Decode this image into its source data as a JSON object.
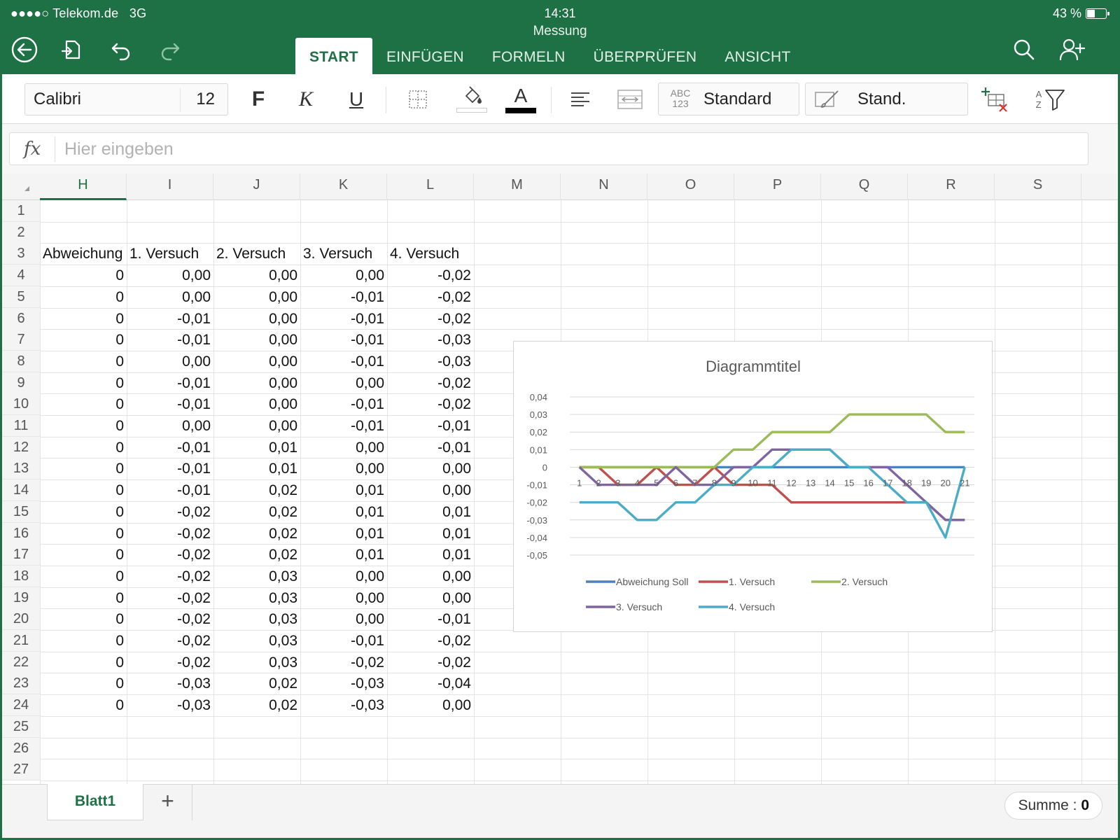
{
  "status": {
    "carrier": "●●●●○ Telekom.de",
    "network": "3G",
    "time": "14:31",
    "battery": "43 %",
    "battery_level": 0.43
  },
  "document": {
    "title": "Messung"
  },
  "tabs": [
    {
      "label": "START",
      "active": true
    },
    {
      "label": "EINFÜGEN",
      "active": false
    },
    {
      "label": "FORMELN",
      "active": false
    },
    {
      "label": "ÜBERPRÜFEN",
      "active": false
    },
    {
      "label": "ANSICHT",
      "active": false
    }
  ],
  "ribbon": {
    "font_name": "Calibri",
    "font_size": "12",
    "bold": "F",
    "italic": "K",
    "underline": "U",
    "font_color": "A",
    "number_format_icon": "ABC 123",
    "number_format": "Standard",
    "cell_style": "Stand.",
    "sort_a": "A",
    "sort_z": "Z"
  },
  "formula_bar": {
    "fx_label": "fx",
    "placeholder": "Hier eingeben",
    "value": ""
  },
  "columns": [
    "H",
    "I",
    "J",
    "K",
    "L",
    "M",
    "N",
    "O",
    "P",
    "Q",
    "R",
    "S"
  ],
  "selected_column": "H",
  "rows": [
    "1",
    "2",
    "3",
    "4",
    "5",
    "6",
    "7",
    "8",
    "9",
    "10",
    "11",
    "12",
    "13",
    "14",
    "15",
    "16",
    "17",
    "18",
    "19",
    "20",
    "21",
    "22",
    "23",
    "24",
    "25",
    "26",
    "27"
  ],
  "table": {
    "headers": [
      "Abweichung",
      "1. Versuch",
      "2. Versuch",
      "3. Versuch",
      "4. Versuch"
    ],
    "data": [
      [
        "0",
        "0,00",
        "0,00",
        "0,00",
        "-0,02"
      ],
      [
        "0",
        "0,00",
        "0,00",
        "-0,01",
        "-0,02"
      ],
      [
        "0",
        "-0,01",
        "0,00",
        "-0,01",
        "-0,02"
      ],
      [
        "0",
        "-0,01",
        "0,00",
        "-0,01",
        "-0,03"
      ],
      [
        "0",
        "0,00",
        "0,00",
        "-0,01",
        "-0,03"
      ],
      [
        "0",
        "-0,01",
        "0,00",
        "0,00",
        "-0,02"
      ],
      [
        "0",
        "-0,01",
        "0,00",
        "-0,01",
        "-0,02"
      ],
      [
        "0",
        "0,00",
        "0,00",
        "-0,01",
        "-0,01"
      ],
      [
        "0",
        "-0,01",
        "0,01",
        "0,00",
        "-0,01"
      ],
      [
        "0",
        "-0,01",
        "0,01",
        "0,00",
        "0,00"
      ],
      [
        "0",
        "-0,01",
        "0,02",
        "0,01",
        "0,00"
      ],
      [
        "0",
        "-0,02",
        "0,02",
        "0,01",
        "0,01"
      ],
      [
        "0",
        "-0,02",
        "0,02",
        "0,01",
        "0,01"
      ],
      [
        "0",
        "-0,02",
        "0,02",
        "0,01",
        "0,01"
      ],
      [
        "0",
        "-0,02",
        "0,03",
        "0,00",
        "0,00"
      ],
      [
        "0",
        "-0,02",
        "0,03",
        "0,00",
        "0,00"
      ],
      [
        "0",
        "-0,02",
        "0,03",
        "0,00",
        "-0,01"
      ],
      [
        "0",
        "-0,02",
        "0,03",
        "-0,01",
        "-0,02"
      ],
      [
        "0",
        "-0,02",
        "0,03",
        "-0,02",
        "-0,02"
      ],
      [
        "0",
        "-0,03",
        "0,02",
        "-0,03",
        "-0,04"
      ],
      [
        "0",
        "-0,03",
        "0,02",
        "-0,03",
        "0,00"
      ]
    ]
  },
  "chart_data": {
    "type": "line",
    "title": "Diagrammtitel",
    "x": [
      "1",
      "2",
      "3",
      "4",
      "5",
      "6",
      "7",
      "8",
      "9",
      "10",
      "11",
      "12",
      "13",
      "14",
      "15",
      "16",
      "17",
      "18",
      "19",
      "20",
      "21"
    ],
    "ylim": [
      -0.05,
      0.04
    ],
    "yticks": [
      "0,04",
      "0,03",
      "0,02",
      "0,01",
      "0",
      "-0,01",
      "-0,02",
      "-0,03",
      "-0,04",
      "-0,05"
    ],
    "ytick_values": [
      0.04,
      0.03,
      0.02,
      0.01,
      0,
      -0.01,
      -0.02,
      -0.03,
      -0.04,
      -0.05
    ],
    "grid": true,
    "legend": "bottom",
    "series": [
      {
        "name": "Abweichung Soll",
        "color": "#4f81bd",
        "values": [
          0,
          0,
          0,
          0,
          0,
          0,
          0,
          0,
          0,
          0,
          0,
          0,
          0,
          0,
          0,
          0,
          0,
          0,
          0,
          0,
          0
        ]
      },
      {
        "name": "1. Versuch",
        "color": "#c0504d",
        "values": [
          0,
          0,
          -0.01,
          -0.01,
          0,
          -0.01,
          -0.01,
          0,
          -0.01,
          -0.01,
          -0.01,
          -0.02,
          -0.02,
          -0.02,
          -0.02,
          -0.02,
          -0.02,
          -0.02,
          -0.02,
          -0.03,
          -0.03
        ]
      },
      {
        "name": "2. Versuch",
        "color": "#9bbb59",
        "values": [
          0,
          0,
          0,
          0,
          0,
          0,
          0,
          0,
          0.01,
          0.01,
          0.02,
          0.02,
          0.02,
          0.02,
          0.03,
          0.03,
          0.03,
          0.03,
          0.03,
          0.02,
          0.02
        ]
      },
      {
        "name": "3. Versuch",
        "color": "#8064a2",
        "values": [
          0,
          -0.01,
          -0.01,
          -0.01,
          -0.01,
          0,
          -0.01,
          -0.01,
          0,
          0,
          0.01,
          0.01,
          0.01,
          0.01,
          0,
          0,
          0,
          -0.01,
          -0.02,
          -0.03,
          -0.03
        ]
      },
      {
        "name": "4. Versuch",
        "color": "#4bacc6",
        "values": [
          -0.02,
          -0.02,
          -0.02,
          -0.03,
          -0.03,
          -0.02,
          -0.02,
          -0.01,
          -0.01,
          0,
          0,
          0.01,
          0.01,
          0.01,
          0,
          0,
          -0.01,
          -0.02,
          -0.02,
          -0.04,
          0
        ]
      }
    ]
  },
  "bottom": {
    "sheet_tab": "Blatt1",
    "add_sheet": "+",
    "sum_label": "Summe : ",
    "sum_value": "0"
  },
  "colors": {
    "accent": "#1e7145"
  }
}
